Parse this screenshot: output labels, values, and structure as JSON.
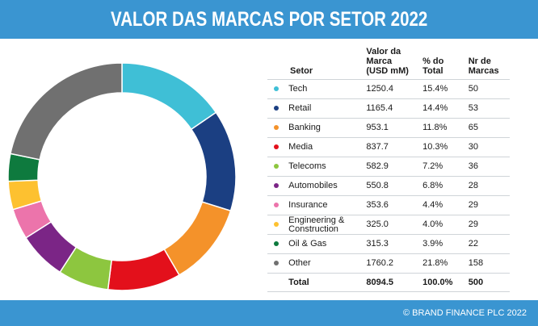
{
  "header": {
    "title": "VALOR DAS MARCAS POR SETOR 2022"
  },
  "footer": {
    "copyright": "© BRAND FINANCE PLC 2022"
  },
  "table": {
    "headers": {
      "sector": "Setor",
      "value": [
        "Valor da",
        "Marca",
        "(USD mM)"
      ],
      "percent": [
        "% do",
        "Total"
      ],
      "count": [
        "Nr de",
        "Marcas"
      ]
    },
    "total": {
      "label": "Total",
      "value": "8094.5",
      "percent": "100.0%",
      "count": "500"
    }
  },
  "chart_data": {
    "type": "pie",
    "title": "VALOR DAS MARCAS POR SETOR 2022",
    "donut": true,
    "categories": [
      "Tech",
      "Retail",
      "Banking",
      "Media",
      "Telecoms",
      "Automobiles",
      "Insurance",
      "Engineering & Construction",
      "Oil & Gas",
      "Other"
    ],
    "category_lines": [
      [
        "Tech"
      ],
      [
        "Retail"
      ],
      [
        "Banking"
      ],
      [
        "Media"
      ],
      [
        "Telecoms"
      ],
      [
        "Automobiles"
      ],
      [
        "Insurance"
      ],
      [
        "Engineering &",
        "Construction"
      ],
      [
        "Oil & Gas"
      ],
      [
        "Other"
      ]
    ],
    "values": [
      1250.4,
      1165.4,
      953.1,
      837.7,
      582.9,
      550.8,
      353.6,
      325.0,
      315.3,
      1760.2
    ],
    "value_labels": [
      "1250.4",
      "1165.4",
      "953.1",
      "837.7",
      "582.9",
      "550.8",
      "353.6",
      "325.0",
      "315.3",
      "1760.2"
    ],
    "percent_labels": [
      "15.4%",
      "14.4%",
      "11.8%",
      "10.3%",
      "7.2%",
      "6.8%",
      "4.4%",
      "4.0%",
      "3.9%",
      "21.8%"
    ],
    "brand_counts": [
      50,
      53,
      65,
      30,
      36,
      28,
      29,
      29,
      22,
      158
    ],
    "colors": [
      "#3fbfd6",
      "#1b3f82",
      "#f4922a",
      "#e3101b",
      "#8dc63f",
      "#7b2586",
      "#ec74ab",
      "#fdc130",
      "#0e7a3e",
      "#707070"
    ],
    "unit": "USD mM"
  }
}
